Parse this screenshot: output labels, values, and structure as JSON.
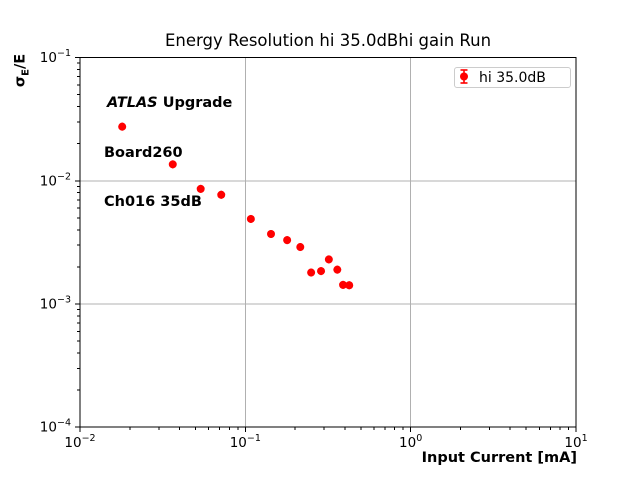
{
  "colors": {
    "accent": "#ff0000",
    "grid": "#b0b0b0",
    "spine": "#000000",
    "legend_border": "#cccccc",
    "background": "#ffffff"
  },
  "chart_data": {
    "type": "scatter",
    "title": "Energy Resolution hi 35.0dBhi gain Run",
    "xlabel": "Input Current [mA]",
    "ylabel": {
      "symbol": "σ",
      "subscript": "E",
      "suffix": "/E"
    },
    "x_scale": "log",
    "y_scale": "log",
    "xlim": [
      0.01,
      10
    ],
    "ylim": [
      0.0001,
      0.1
    ],
    "x_tick_exponents": [
      -2,
      -1,
      0,
      1
    ],
    "y_tick_exponents": [
      -1,
      -2,
      -3,
      -4
    ],
    "grid": "major",
    "legend": {
      "position": "upper right",
      "entries": [
        {
          "label": "hi 35.0dB",
          "color": "#ff0000",
          "marker": "errorbar-circle"
        }
      ]
    },
    "annotation": {
      "line1_italic": "ATLAS",
      "line1_bold": " Upgrade",
      "line2": "Board260",
      "line3": "Ch016 35dB"
    },
    "series": [
      {
        "name": "hi 35.0dB",
        "color": "#ff0000",
        "marker": "circle",
        "marker_size_px": 8,
        "points": [
          {
            "x": 0.018,
            "y": 0.0275
          },
          {
            "x": 0.0364,
            "y": 0.0136
          },
          {
            "x": 0.0537,
            "y": 0.0086
          },
          {
            "x": 0.0715,
            "y": 0.0077
          },
          {
            "x": 0.108,
            "y": 0.0049
          },
          {
            "x": 0.143,
            "y": 0.0037
          },
          {
            "x": 0.179,
            "y": 0.0033
          },
          {
            "x": 0.215,
            "y": 0.0029
          },
          {
            "x": 0.25,
            "y": 0.0018
          },
          {
            "x": 0.287,
            "y": 0.00185
          },
          {
            "x": 0.32,
            "y": 0.0023
          },
          {
            "x": 0.36,
            "y": 0.0019
          },
          {
            "x": 0.39,
            "y": 0.00143
          },
          {
            "x": 0.425,
            "y": 0.00142
          }
        ]
      }
    ]
  }
}
